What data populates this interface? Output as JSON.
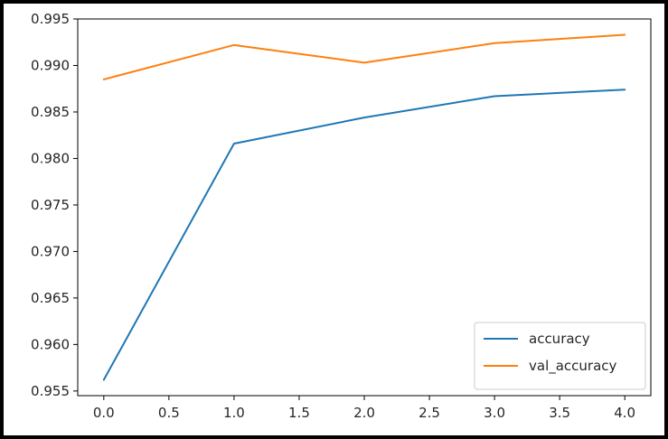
{
  "chart_data": {
    "type": "line",
    "title": "",
    "xlabel": "",
    "ylabel": "",
    "x": [
      0,
      1,
      2,
      3,
      4
    ],
    "xlim": [
      -0.2,
      4.2
    ],
    "ylim": [
      0.9545,
      0.995
    ],
    "xticks": [
      0.0,
      0.5,
      1.0,
      1.5,
      2.0,
      2.5,
      3.0,
      3.5,
      4.0
    ],
    "xtick_labels": [
      "0.0",
      "0.5",
      "1.0",
      "1.5",
      "2.0",
      "2.5",
      "3.0",
      "3.5",
      "4.0"
    ],
    "yticks": [
      0.955,
      0.96,
      0.965,
      0.97,
      0.975,
      0.98,
      0.985,
      0.99,
      0.995
    ],
    "ytick_labels": [
      "0.955",
      "0.960",
      "0.965",
      "0.970",
      "0.975",
      "0.980",
      "0.985",
      "0.990",
      "0.995"
    ],
    "grid": false,
    "legend_position": "lower-right",
    "series": [
      {
        "name": "accuracy",
        "color": "#1f77b4",
        "values": [
          0.9562,
          0.9816,
          0.9844,
          0.9867,
          0.9874
        ]
      },
      {
        "name": "val_accuracy",
        "color": "#ff7f0e",
        "values": [
          0.9885,
          0.9922,
          0.9903,
          0.9924,
          0.9933
        ]
      }
    ]
  }
}
